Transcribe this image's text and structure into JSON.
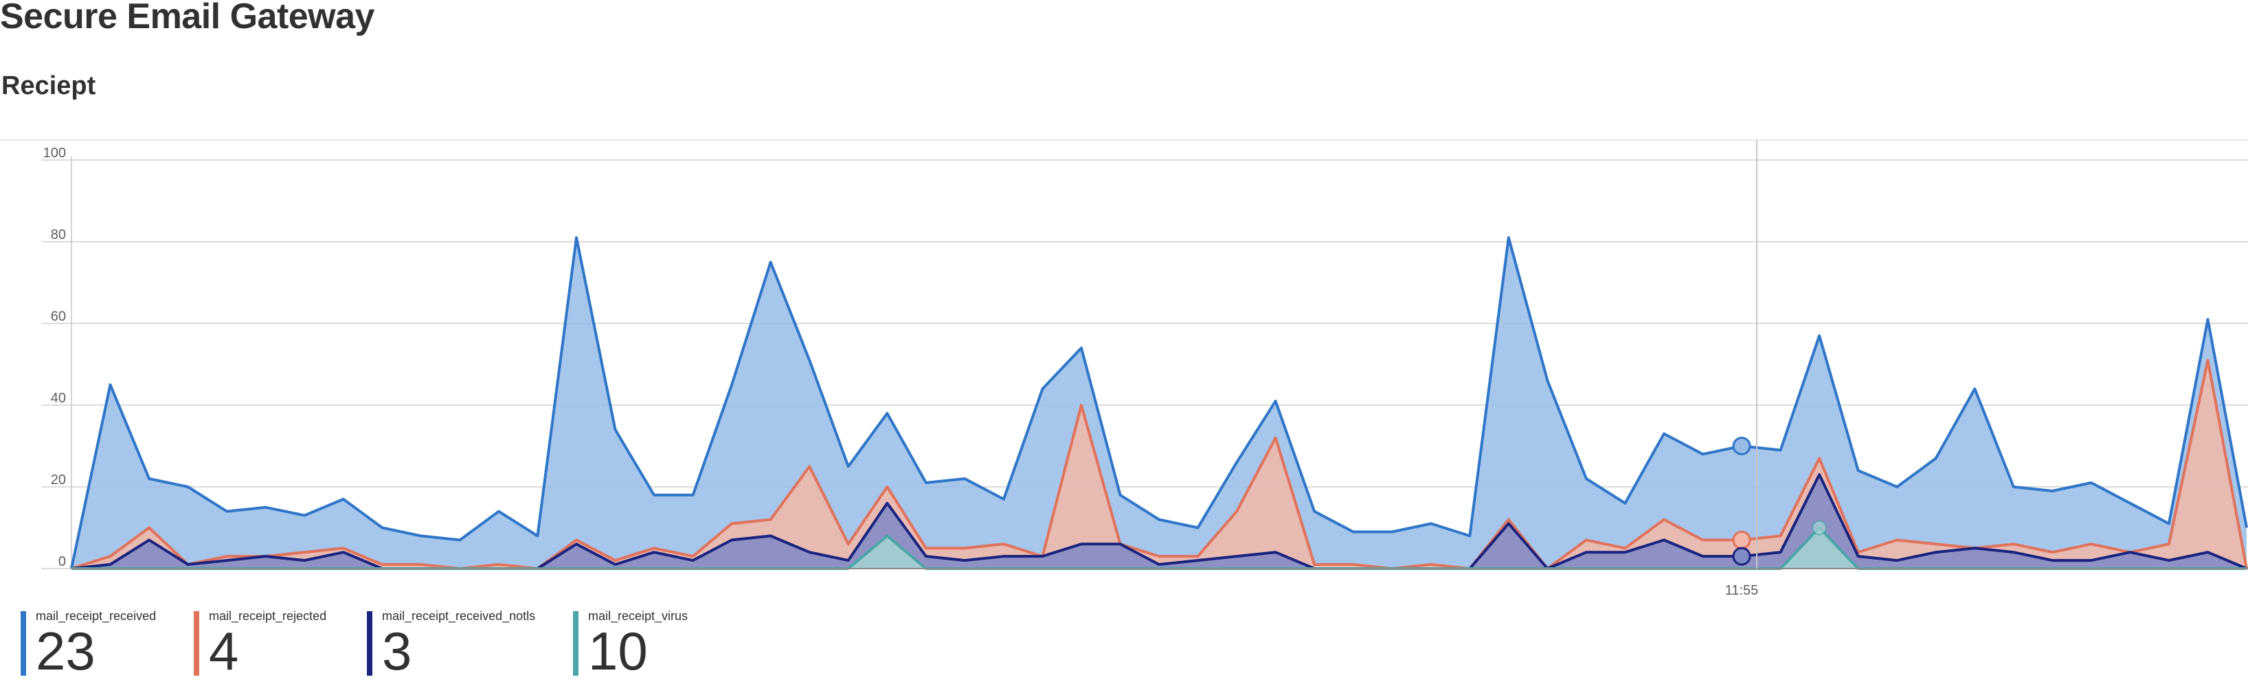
{
  "page": {
    "title": "Secure Email Gateway",
    "section_title": "Reciept"
  },
  "legend": [
    {
      "name": "mail_receipt_received",
      "value": "23",
      "color": "#2f76c8"
    },
    {
      "name": "mail_receipt_rejected",
      "value": "4",
      "color": "#e0735c"
    },
    {
      "name": "mail_receipt_received_notls",
      "value": "3",
      "color": "#1a237e"
    },
    {
      "name": "mail_receipt_virus",
      "value": "10",
      "color": "#4aa5a8"
    }
  ],
  "chart_data": {
    "type": "area",
    "ylim": [
      0,
      100
    ],
    "yticks": [
      "0",
      "20",
      "40",
      "60",
      "80",
      "100"
    ],
    "x_tick_labels": [
      "11:55"
    ],
    "cursor_label": "11:55",
    "grid": true,
    "legend_placement": "bottom",
    "series": [
      {
        "name": "mail_receipt_received",
        "color": "#2f76c8",
        "fill": "#98bce7",
        "values": [
          0,
          45,
          22,
          20,
          14,
          15,
          13,
          17,
          10,
          8,
          7,
          14,
          8,
          81,
          34,
          18,
          18,
          45,
          75,
          51,
          25,
          38,
          21,
          22,
          17,
          44,
          54,
          18,
          12,
          10,
          26,
          41,
          14,
          9,
          9,
          11,
          8,
          81,
          46,
          22,
          16,
          33,
          28,
          30,
          29,
          57,
          24,
          20,
          27,
          44,
          20,
          19,
          21,
          16,
          11,
          61,
          10
        ]
      },
      {
        "name": "mail_receipt_rejected",
        "color": "#e0735c",
        "fill": "#f2b7a8",
        "values": [
          0,
          3,
          10,
          1,
          3,
          3,
          4,
          5,
          1,
          1,
          0,
          1,
          0,
          7,
          2,
          5,
          3,
          11,
          12,
          25,
          6,
          20,
          5,
          5,
          6,
          3,
          40,
          6,
          3,
          3,
          14,
          32,
          1,
          1,
          0,
          1,
          0,
          12,
          0,
          7,
          5,
          12,
          7,
          7,
          8,
          27,
          4,
          7,
          6,
          5,
          6,
          4,
          6,
          4,
          6,
          51,
          0
        ]
      },
      {
        "name": "mail_receipt_received_notls",
        "color": "#1a237e",
        "fill": "#7f8ac7",
        "values": [
          0,
          1,
          7,
          1,
          2,
          3,
          2,
          4,
          0,
          0,
          0,
          0,
          0,
          6,
          1,
          4,
          2,
          7,
          8,
          4,
          2,
          16,
          3,
          2,
          3,
          3,
          6,
          6,
          1,
          2,
          3,
          4,
          0,
          0,
          0,
          0,
          0,
          11,
          0,
          4,
          4,
          7,
          3,
          3,
          4,
          23,
          3,
          2,
          4,
          5,
          4,
          2,
          2,
          4,
          2,
          4,
          0
        ]
      },
      {
        "name": "mail_receipt_virus",
        "color": "#4aa5a8",
        "fill": "#a6d3d4",
        "values": [
          0,
          0,
          0,
          0,
          0,
          0,
          0,
          0,
          0,
          0,
          0,
          0,
          0,
          0,
          0,
          0,
          0,
          0,
          0,
          0,
          0,
          8,
          0,
          0,
          0,
          0,
          0,
          0,
          0,
          0,
          0,
          0,
          0,
          0,
          0,
          0,
          0,
          0,
          0,
          0,
          0,
          0,
          0,
          0,
          0,
          10,
          0,
          0,
          0,
          0,
          0,
          0,
          0,
          0,
          0,
          0,
          0
        ]
      }
    ],
    "cursor_index": 43
  }
}
